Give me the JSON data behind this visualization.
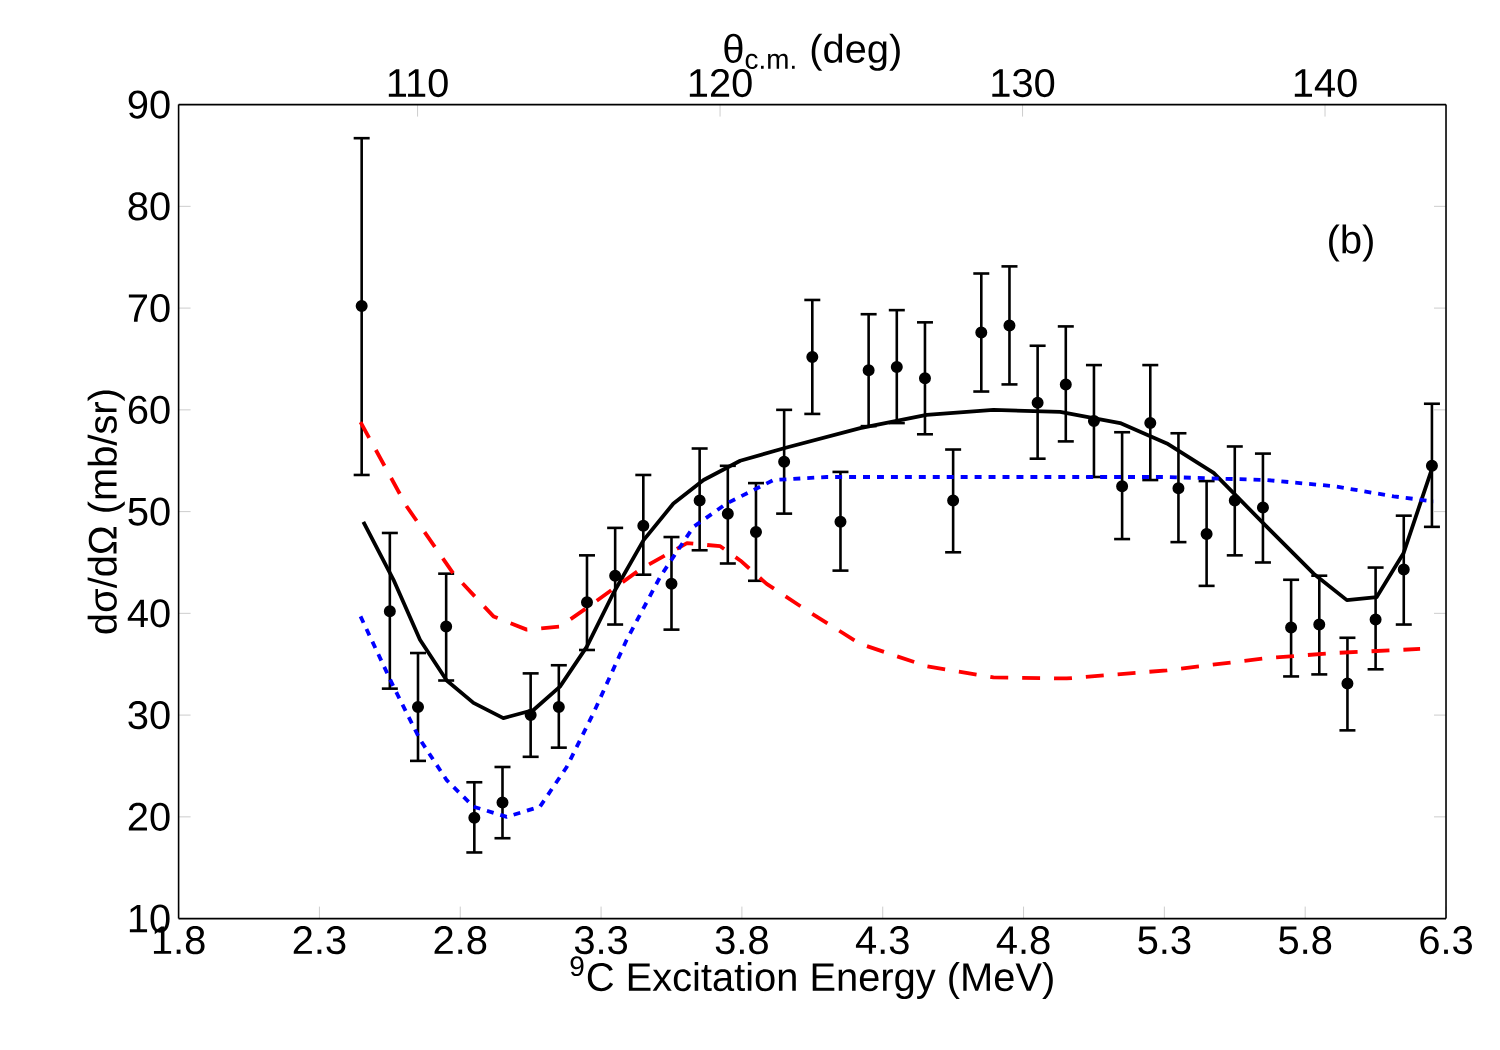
{
  "chart_data": {
    "type": "scatter",
    "xlabel": "$^{9}$C Excitation Energy (MeV)",
    "ylabel": "dσ/dΩ (mb/sr)",
    "x2label": "θ$_{c.m.}$ (deg)",
    "xlim": [
      1.8,
      6.3
    ],
    "xticks": [
      1.8,
      2.3,
      2.8,
      3.3,
      3.8,
      4.3,
      4.8,
      5.3,
      5.8,
      6.3
    ],
    "ylim": [
      10,
      90
    ],
    "yticks": [
      10,
      20,
      30,
      40,
      50,
      60,
      70,
      80,
      90
    ],
    "x2lim": [
      102.1,
      144.0
    ],
    "x2ticks": [
      110,
      120,
      130,
      140
    ],
    "annotations": [
      "(b)"
    ],
    "series": [
      {
        "color": "#000000",
        "marker": "circle",
        "x": [
          2.45,
          2.55,
          2.65,
          2.75,
          2.85,
          2.95,
          3.05,
          3.15,
          3.25,
          3.35,
          3.45,
          3.55,
          3.65,
          3.75,
          3.85,
          3.95,
          4.05,
          4.15,
          4.25,
          4.35,
          4.45,
          4.55,
          4.65,
          4.75,
          4.85,
          4.95,
          5.05,
          5.15,
          5.25,
          5.35,
          5.45,
          5.55,
          5.65,
          5.75,
          5.85,
          5.95,
          6.05,
          6.15,
          6.25
        ],
        "values": [
          70.2,
          40.2,
          30.8,
          38.7,
          19.9,
          21.4,
          30.0,
          30.8,
          41.1,
          43.7,
          48.6,
          42.9,
          51.1,
          49.8,
          48.0,
          54.9,
          65.2,
          49.0,
          63.9,
          64.2,
          63.1,
          51.1,
          67.6,
          68.3,
          60.7,
          62.5,
          58.9,
          52.5,
          58.7,
          52.3,
          47.8,
          51.1,
          50.4,
          38.6,
          38.9,
          33.1,
          39.4,
          44.3,
          54.5
        ],
        "errors": [
          [
            53.6,
            86.7
          ],
          [
            32.6,
            47.9
          ],
          [
            25.5,
            36.1
          ],
          [
            33.4,
            43.9
          ],
          [
            16.5,
            23.4
          ],
          [
            17.9,
            24.9
          ],
          [
            25.9,
            34.1
          ],
          [
            26.8,
            34.9
          ],
          [
            36.4,
            45.7
          ],
          [
            38.9,
            48.4
          ],
          [
            43.8,
            53.6
          ],
          [
            38.4,
            47.5
          ],
          [
            46.2,
            56.2
          ],
          [
            44.9,
            54.5
          ],
          [
            43.2,
            52.8
          ],
          [
            49.8,
            60.0
          ],
          [
            59.6,
            70.8
          ],
          [
            44.2,
            53.9
          ],
          [
            58.4,
            69.4
          ],
          [
            58.7,
            69.8
          ],
          [
            57.6,
            68.6
          ],
          [
            46.0,
            56.1
          ],
          [
            61.8,
            73.4
          ],
          [
            62.5,
            74.1
          ],
          [
            55.2,
            66.3
          ],
          [
            56.9,
            68.2
          ],
          [
            53.4,
            64.4
          ],
          [
            47.3,
            57.8
          ],
          [
            53.1,
            64.4
          ],
          [
            47.0,
            57.7
          ],
          [
            42.7,
            53.0
          ],
          [
            45.7,
            56.4
          ],
          [
            45.0,
            55.7
          ],
          [
            33.8,
            43.3
          ],
          [
            34.0,
            43.7
          ],
          [
            28.5,
            37.6
          ],
          [
            34.5,
            44.5
          ],
          [
            38.9,
            49.6
          ],
          [
            48.5,
            60.6
          ]
        ]
      },
      {
        "type": "line",
        "color": "#000000",
        "line_style": "solid",
        "marker": "none",
        "x": [
          2.456,
          2.563,
          2.657,
          2.752,
          2.847,
          2.953,
          3.06,
          3.154,
          3.249,
          3.344,
          3.451,
          3.557,
          3.664,
          3.794,
          3.959,
          4.22,
          4.456,
          4.693,
          4.93,
          5.143,
          5.309,
          5.475,
          5.664,
          5.83,
          5.948,
          6.054,
          6.149,
          6.256
        ],
        "values": [
          49.0,
          43.3,
          37.4,
          33.4,
          31.2,
          29.7,
          30.5,
          32.8,
          36.7,
          42.0,
          47.2,
          50.8,
          53.1,
          55.0,
          56.3,
          58.2,
          59.5,
          60.0,
          59.8,
          58.7,
          56.7,
          53.8,
          48.5,
          43.9,
          41.3,
          41.6,
          45.9,
          54.7
        ]
      },
      {
        "type": "line",
        "color": "#ff0000",
        "line_style": "dashed",
        "marker": "none",
        "x": [
          2.446,
          2.61,
          2.776,
          2.918,
          3.036,
          3.154,
          3.273,
          3.438,
          3.605,
          3.723,
          3.794,
          3.888,
          4.03,
          4.22,
          4.456,
          4.693,
          4.953,
          5.309,
          5.664,
          5.901,
          6.208
        ],
        "values": [
          58.8,
          50.5,
          43.9,
          39.7,
          38.4,
          38.7,
          41.0,
          44.3,
          46.9,
          46.6,
          45.2,
          42.9,
          40.3,
          37.0,
          34.8,
          33.7,
          33.6,
          34.4,
          35.6,
          36.1,
          36.5
        ]
      },
      {
        "type": "line",
        "color": "#0000ff",
        "line_style": "dotted",
        "marker": "none",
        "x": [
          2.446,
          2.563,
          2.657,
          2.752,
          2.847,
          2.965,
          3.083,
          3.178,
          3.273,
          3.391,
          3.51,
          3.628,
          3.746,
          3.912,
          4.101,
          4.717,
          5.309,
          5.664,
          5.901,
          6.114,
          6.256
        ],
        "values": [
          39.7,
          32.8,
          27.6,
          23.6,
          21.0,
          20.0,
          21.0,
          24.9,
          30.2,
          37.4,
          43.6,
          48.5,
          50.8,
          53.1,
          53.4,
          53.4,
          53.4,
          53.1,
          52.5,
          51.5,
          51.0
        ]
      }
    ]
  }
}
